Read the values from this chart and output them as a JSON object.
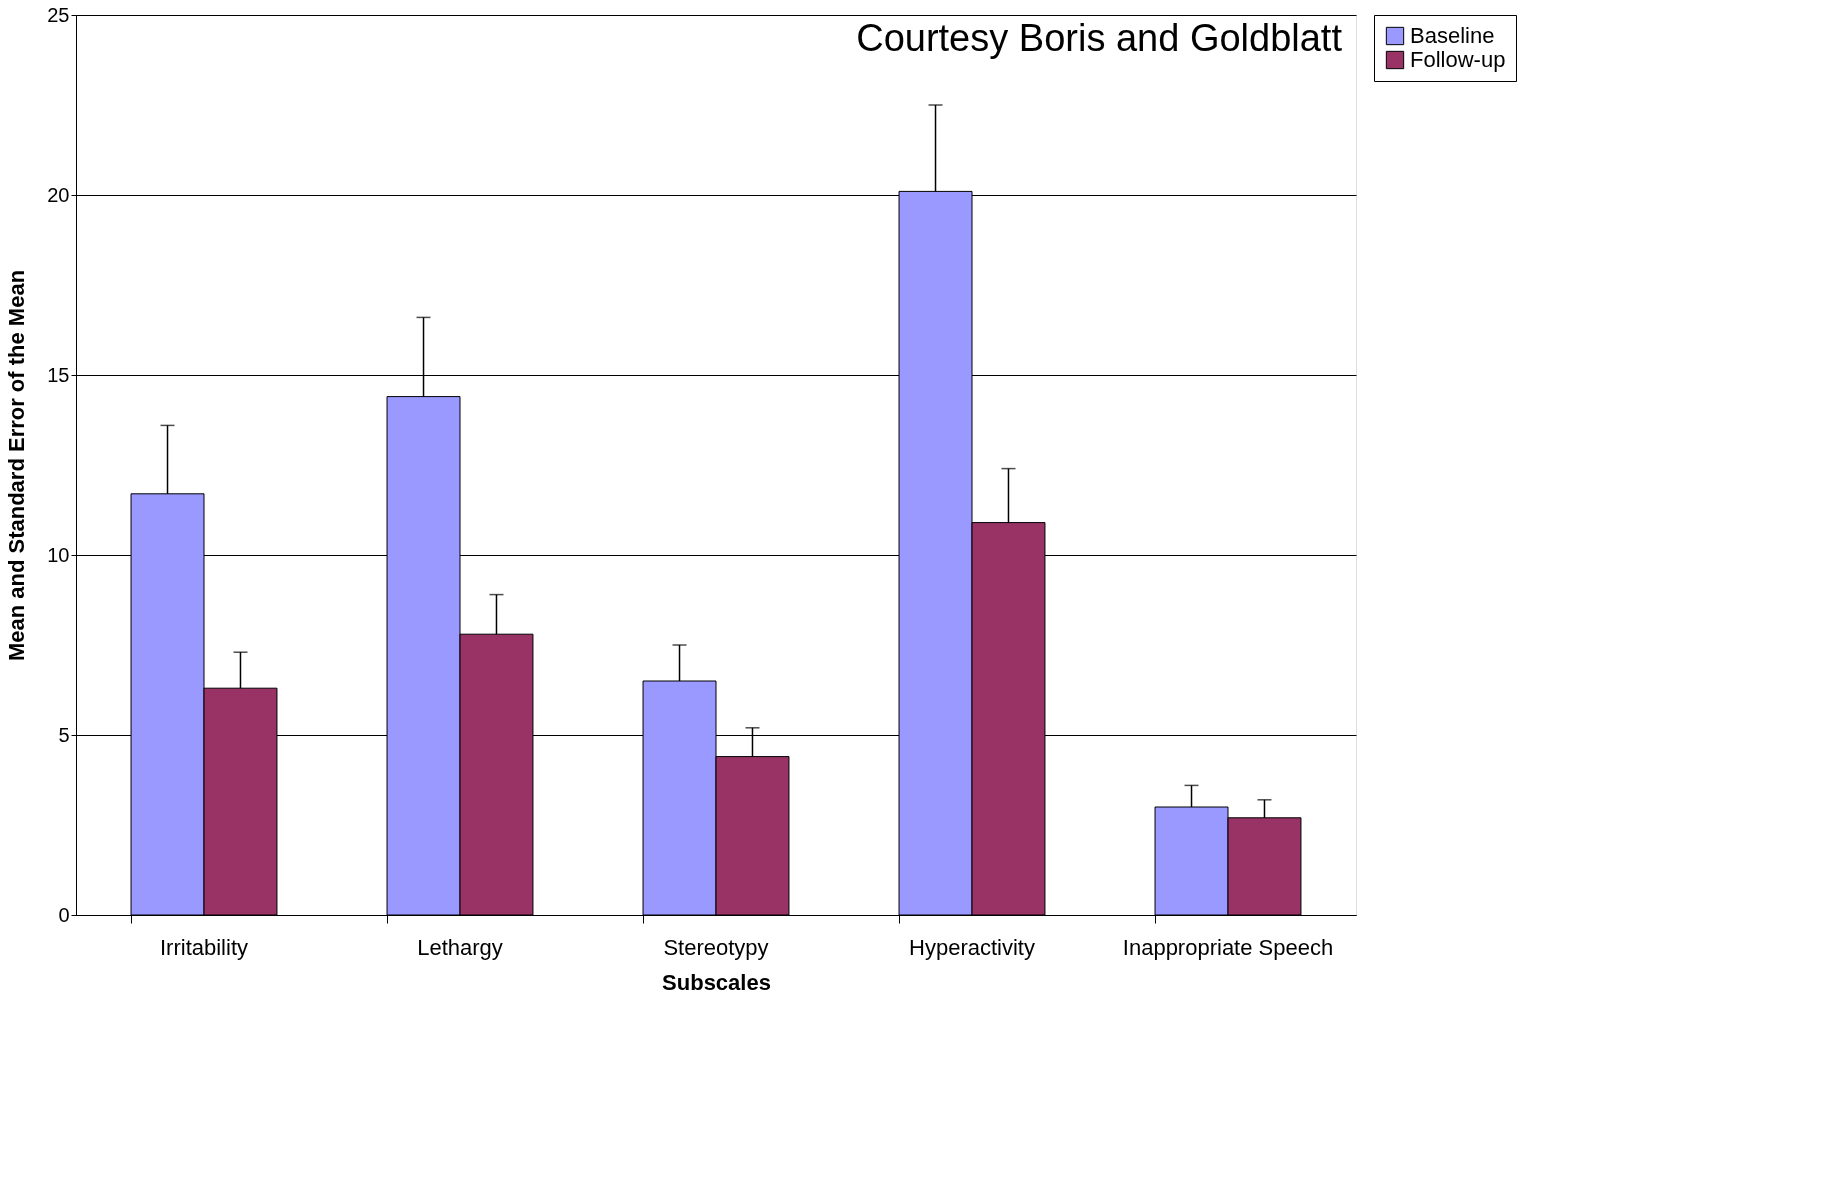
{
  "chart_data": {
    "type": "bar",
    "xlabel": "Subscales",
    "ylabel": "Mean and Standard Error of the Mean",
    "categories": [
      "Irritability",
      "Lethargy",
      "Stereotypy",
      "Hyperactivity",
      "Inappropriate Speech"
    ],
    "series": [
      {
        "name": "Baseline",
        "color": "#9999ff",
        "values": [
          11.7,
          14.4,
          6.5,
          20.1,
          3.0
        ],
        "errors": [
          [
            11.7,
            13.6
          ],
          [
            14.4,
            16.6
          ],
          [
            6.5,
            7.5
          ],
          [
            20.1,
            22.5
          ],
          [
            3.0,
            3.6
          ]
        ]
      },
      {
        "name": "Follow-up",
        "color": "#993366",
        "values": [
          6.3,
          7.8,
          4.4,
          10.9,
          2.7
        ],
        "errors": [
          [
            6.3,
            7.3
          ],
          [
            7.8,
            8.9
          ],
          [
            4.4,
            5.2
          ],
          [
            10.9,
            12.4
          ],
          [
            2.7,
            3.2
          ]
        ]
      }
    ],
    "ylim": [
      0,
      25
    ],
    "yticks": [
      0,
      5,
      10,
      15,
      20,
      25
    ],
    "grid": "y",
    "legend": "right",
    "annotations": [
      "Courtesy Boris and Goldblatt"
    ]
  }
}
